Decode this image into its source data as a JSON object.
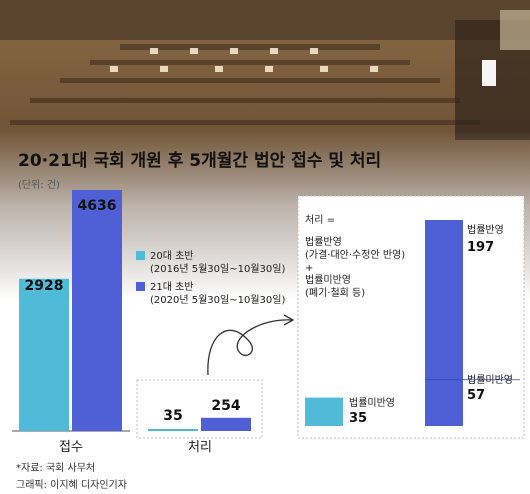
{
  "title": "20·21대 국회 개원 후 5개월간 법안 접수 및 처리",
  "unit": "(단위: 건)",
  "colors": {
    "c20": "#4fbbd8",
    "c21": "#4f5fd6",
    "frame": "#bdbdbd"
  },
  "legend": [
    {
      "label": "20대 초반",
      "period": "(2016년 5월30일~10월30일)"
    },
    {
      "label": "21대 초반",
      "period": "(2020년 5월30일~10월30일)"
    }
  ],
  "definition": {
    "title": "처리 =",
    "line1": "법률반영",
    "line2": "(가결·대안·수정안 반영)",
    "plus": "+",
    "line3": "법률미반영",
    "line4": "(폐기·철회 등)"
  },
  "chart_data": [
    {
      "type": "bar",
      "categories": [
        "접수",
        "처리"
      ],
      "series": [
        {
          "name": "20대 초반",
          "values": [
            2928,
            35
          ]
        },
        {
          "name": "21대 초반",
          "values": [
            4636,
            254
          ]
        }
      ]
    },
    {
      "type": "bar",
      "stacked": true,
      "series": [
        {
          "name": "20대 초반",
          "segments": [
            {
              "label": "법률미반영",
              "value": 35
            }
          ]
        },
        {
          "name": "21대 초반",
          "segments": [
            {
              "label": "법률미반영",
              "value": 57
            },
            {
              "label": "법률반영",
              "value": 197
            }
          ]
        }
      ]
    }
  ],
  "source": "*자료: 국회 사무처",
  "credit": "그래픽: 이지혜 디자인기자"
}
